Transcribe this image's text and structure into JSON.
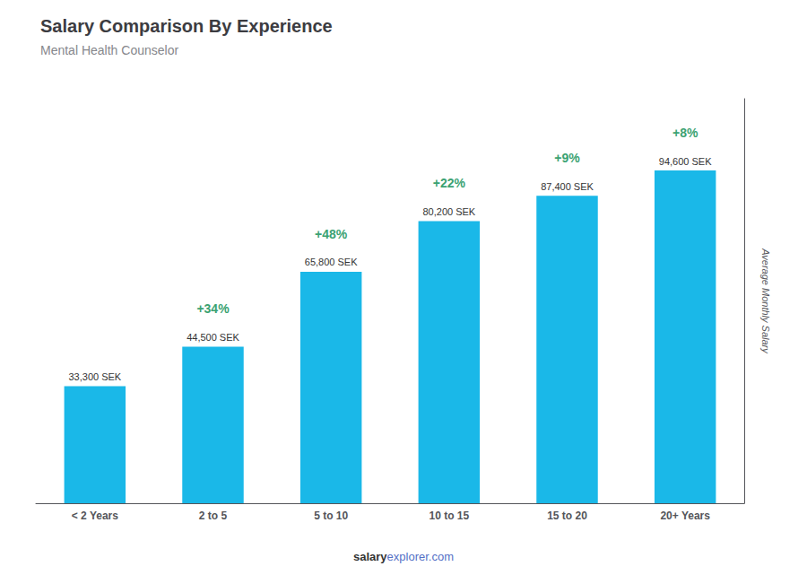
{
  "chart_data": {
    "type": "bar",
    "title": "Salary Comparison By Experience",
    "subtitle": "Mental Health Counselor",
    "categories": [
      "< 2 Years",
      "2 to 5",
      "5 to 10",
      "10 to 15",
      "15 to 20",
      "20+ Years"
    ],
    "values": [
      33300,
      44500,
      65800,
      80200,
      87400,
      94600
    ],
    "value_labels": [
      "33,300 SEK",
      "44,500 SEK",
      "65,800 SEK",
      "80,200 SEK",
      "87,400 SEK",
      "94,600 SEK"
    ],
    "data_labels": true,
    "annotations": [
      "+34%",
      "+48%",
      "+22%",
      "+9%",
      "+8%"
    ],
    "color": "#1ab8e8",
    "ylabel": "Average Monthly Salary",
    "footer": [
      "salary",
      "explorer.com"
    ],
    "ylim": [
      0,
      115000
    ],
    "tick_labels": "x",
    "grid": false
  }
}
